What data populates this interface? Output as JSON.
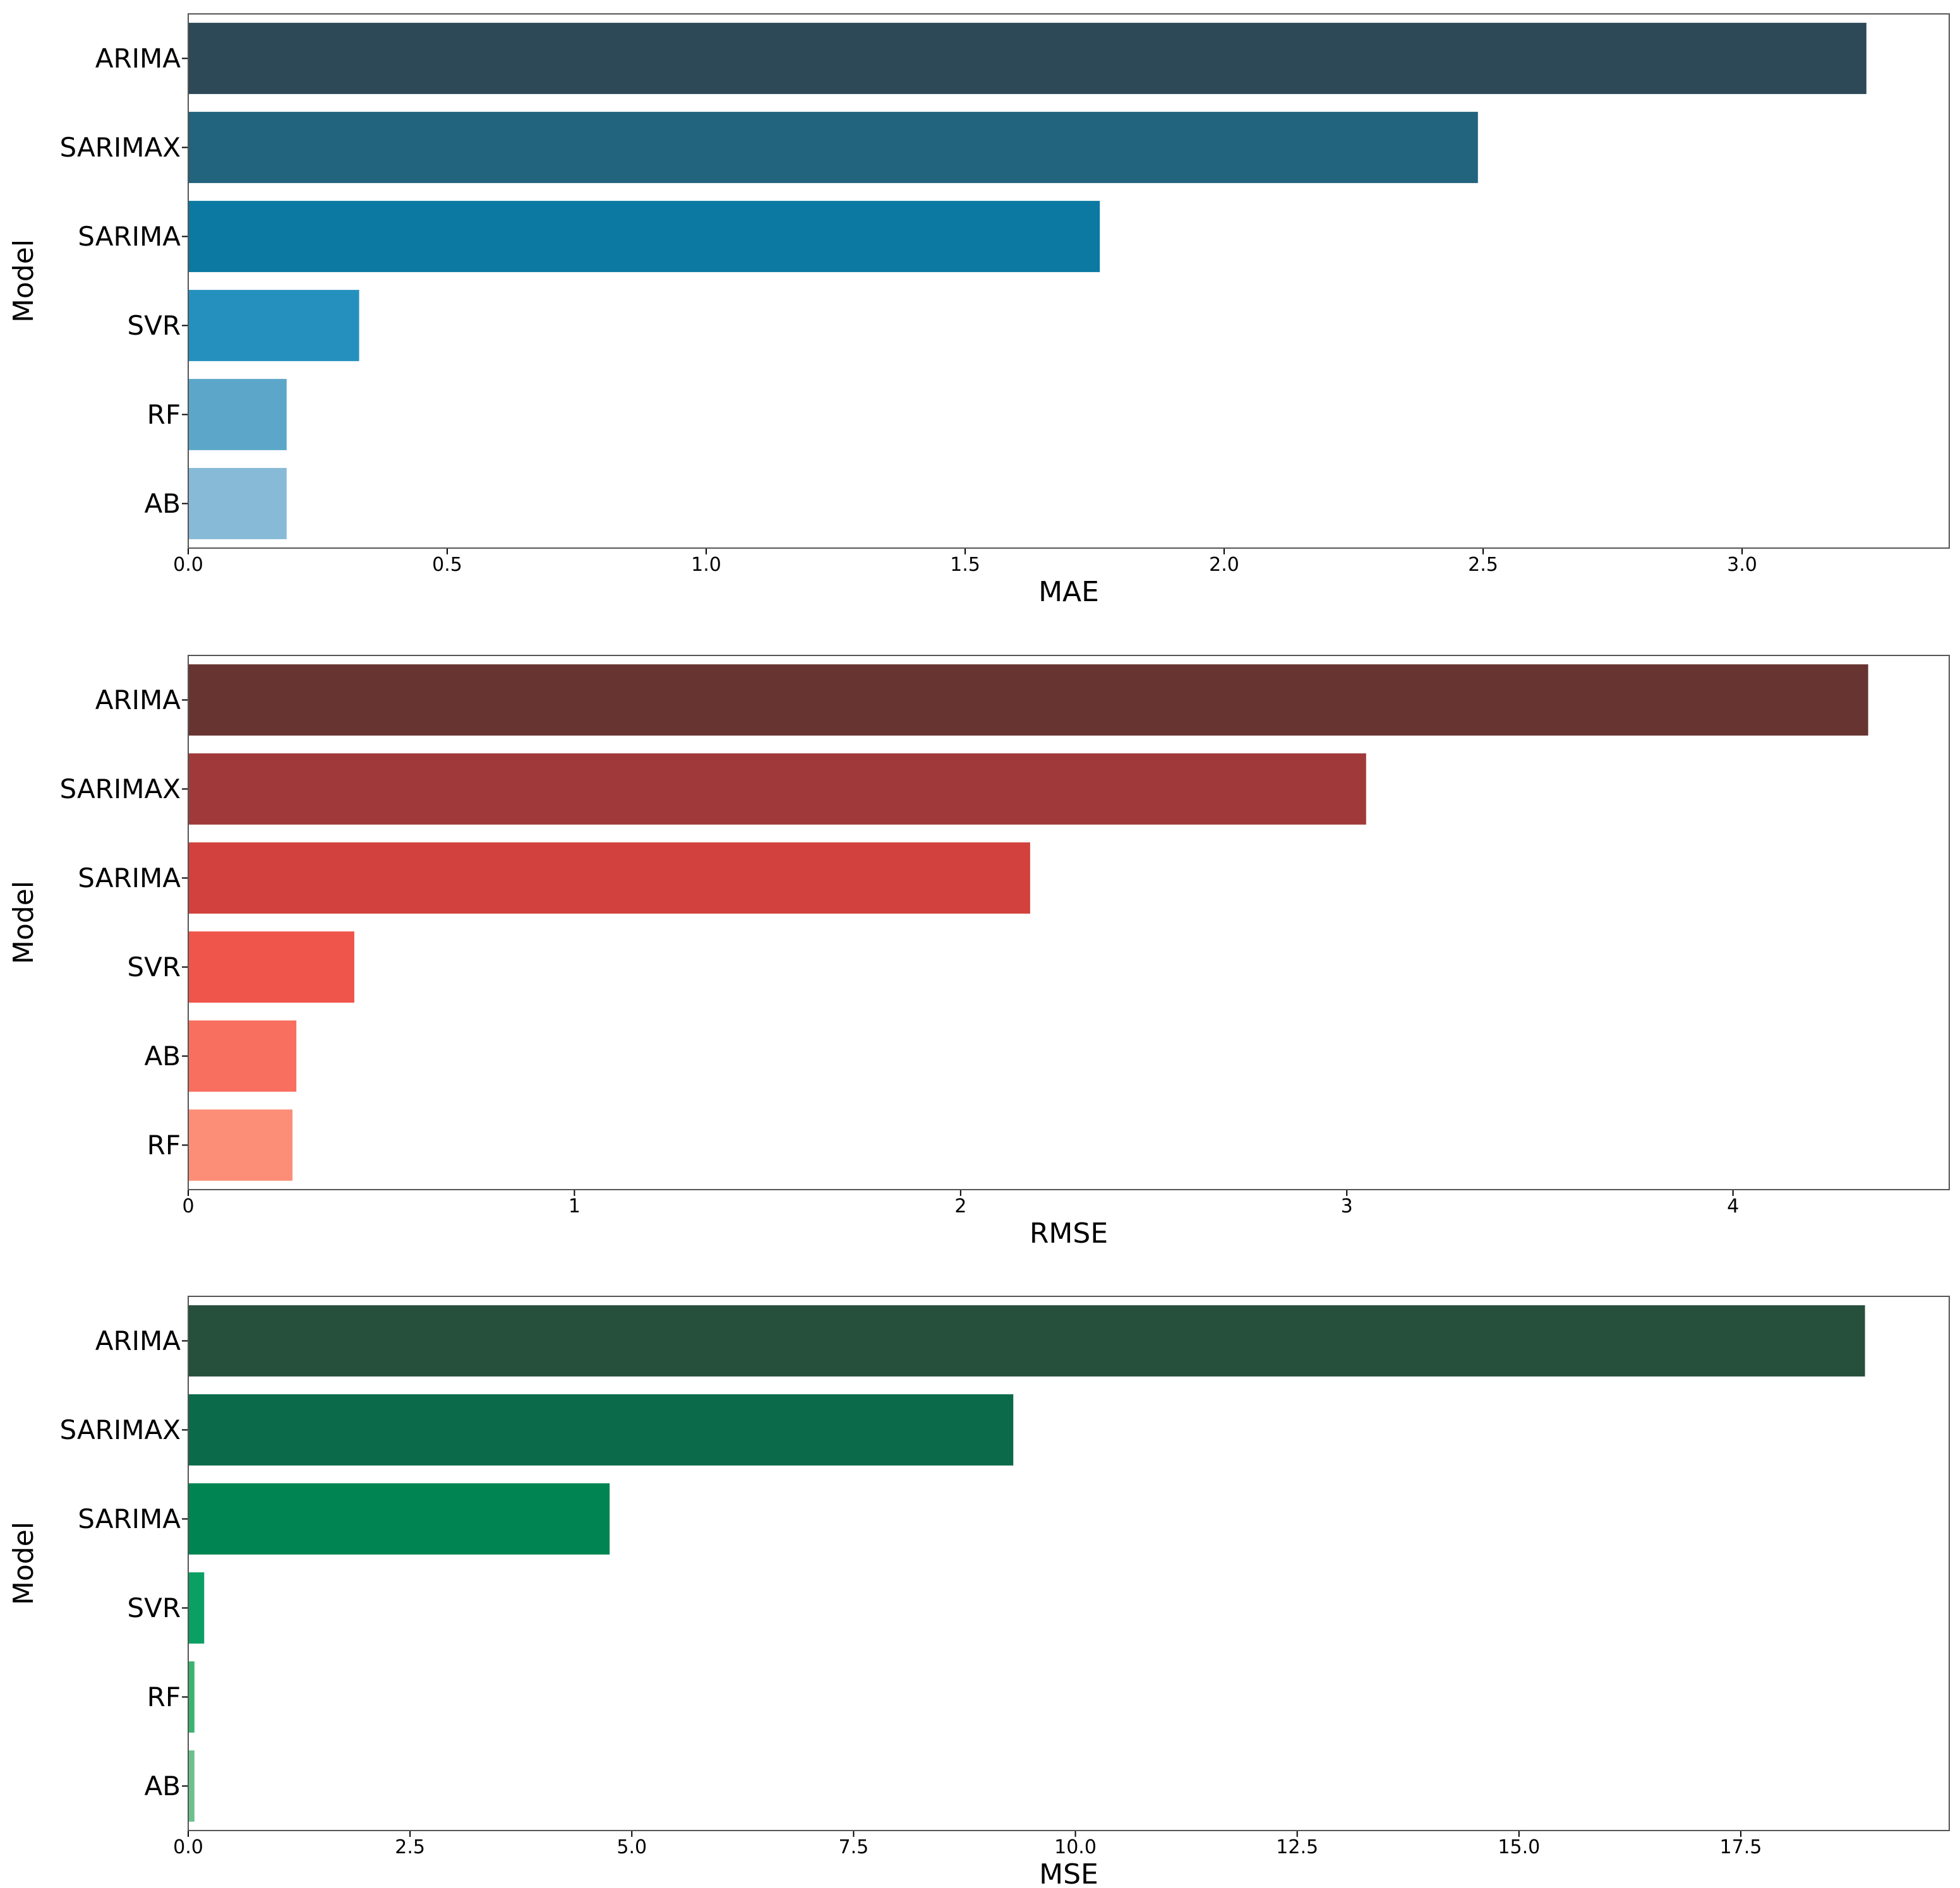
{
  "chart_data": [
    {
      "type": "bar",
      "orientation": "horizontal",
      "metric": "MAE",
      "xlabel": "MAE",
      "ylabel": "Model",
      "categories": [
        "ARIMA",
        "SARIMAX",
        "SARIMA",
        "SVR",
        "RF",
        "AB"
      ],
      "values": [
        3.24,
        2.49,
        1.76,
        0.33,
        0.19,
        0.19
      ],
      "colors": [
        "#2d4856",
        "#22637e",
        "#0b79a1",
        "#2590bd",
        "#5ca7c9",
        "#87bad7"
      ],
      "xlim": [
        0,
        3.4
      ],
      "xticks": [
        0,
        0.5,
        1.0,
        1.5,
        2.0,
        2.5,
        3.0
      ],
      "xtick_labels": [
        "0.0",
        "0.5",
        "1.0",
        "1.5",
        "2.0",
        "2.5",
        "3.0"
      ]
    },
    {
      "type": "bar",
      "orientation": "horizontal",
      "metric": "RMSE",
      "xlabel": "RMSE",
      "ylabel": "Model",
      "categories": [
        "ARIMA",
        "SARIMAX",
        "SARIMA",
        "SVR",
        "AB",
        "RF"
      ],
      "values": [
        4.35,
        3.05,
        2.18,
        0.43,
        0.28,
        0.27
      ],
      "colors": [
        "#673432",
        "#a03a3a",
        "#d2413d",
        "#ef554a",
        "#f96f5f",
        "#fc8e78"
      ],
      "xlim": [
        0,
        4.56
      ],
      "xticks": [
        0,
        1,
        2,
        3,
        4
      ],
      "xtick_labels": [
        "0",
        "1",
        "2",
        "3",
        "4"
      ]
    },
    {
      "type": "bar",
      "orientation": "horizontal",
      "metric": "MSE",
      "xlabel": "MSE",
      "ylabel": "Model",
      "categories": [
        "ARIMA",
        "SARIMAX",
        "SARIMA",
        "SVR",
        "RF",
        "AB"
      ],
      "values": [
        18.9,
        9.3,
        4.75,
        0.18,
        0.07,
        0.07
      ],
      "colors": [
        "#264f3c",
        "#0b6a4a",
        "#008451",
        "#0aa063",
        "#3cb371",
        "#6cc08c"
      ],
      "xlim": [
        0,
        19.85
      ],
      "xticks": [
        0,
        2.5,
        5.0,
        7.5,
        10.0,
        12.5,
        15.0,
        17.5
      ],
      "xtick_labels": [
        "0.0",
        "2.5",
        "5.0",
        "7.5",
        "10.0",
        "12.5",
        "15.0",
        "17.5"
      ]
    }
  ]
}
